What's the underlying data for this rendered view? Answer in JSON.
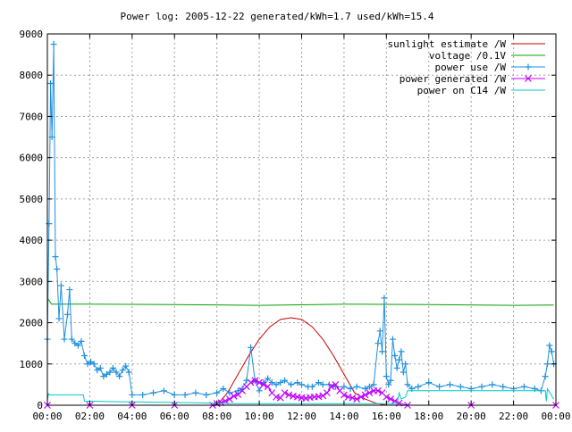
{
  "chart_data": {
    "type": "line",
    "title": "Power log: 2005-12-22 generated/kWh=1.7 used/kWh=15.4",
    "xlabel": "",
    "ylabel": "",
    "xlim": [
      0,
      24
    ],
    "ylim": [
      0,
      9000
    ],
    "grid": true,
    "legend_position": "top-right",
    "x_ticks": [
      "00:00",
      "02:00",
      "04:00",
      "06:00",
      "08:00",
      "10:00",
      "12:00",
      "14:00",
      "16:00",
      "18:00",
      "20:00",
      "22:00",
      "00:00"
    ],
    "y_ticks": [
      "0",
      "1000",
      "2000",
      "3000",
      "4000",
      "5000",
      "6000",
      "7000",
      "8000",
      "9000"
    ],
    "series": [
      {
        "name": "sunlight estimate /W",
        "color": "#cc0000",
        "marker": "none",
        "x": [
          8.0,
          8.5,
          9.0,
          9.5,
          10.0,
          10.5,
          11.0,
          11.5,
          12.0,
          12.5,
          13.0,
          13.5,
          14.0,
          14.5,
          15.0,
          15.5,
          16.0
        ],
        "y": [
          0,
          300,
          750,
          1200,
          1600,
          1900,
          2080,
          2120,
          2080,
          1900,
          1600,
          1200,
          750,
          300,
          150,
          50,
          0
        ]
      },
      {
        "name": "voltage /0.1V",
        "color": "#00a000",
        "marker": "none",
        "x": [
          0.0,
          0.2,
          2.0,
          6.0,
          10.0,
          14.0,
          18.0,
          22.0,
          23.9
        ],
        "y": [
          2600,
          2450,
          2450,
          2440,
          2420,
          2450,
          2440,
          2420,
          2430
        ]
      },
      {
        "name": "power use /W",
        "color": "#1f8fdf",
        "marker": "+",
        "x": [
          0.0,
          0.08,
          0.15,
          0.22,
          0.3,
          0.38,
          0.45,
          0.55,
          0.65,
          0.8,
          0.95,
          1.05,
          1.15,
          1.3,
          1.45,
          1.6,
          1.75,
          1.9,
          2.05,
          2.2,
          2.35,
          2.5,
          2.65,
          2.8,
          2.95,
          3.1,
          3.25,
          3.4,
          3.55,
          3.7,
          3.85,
          4.0,
          4.5,
          5.0,
          5.5,
          6.0,
          6.5,
          7.0,
          7.5,
          8.0,
          8.3,
          8.6,
          9.0,
          9.2,
          9.4,
          9.6,
          9.8,
          10.0,
          10.2,
          10.4,
          10.6,
          10.8,
          11.0,
          11.2,
          11.5,
          11.8,
          12.0,
          12.3,
          12.5,
          12.8,
          13.0,
          13.3,
          13.6,
          14.0,
          14.3,
          14.6,
          15.0,
          15.2,
          15.4,
          15.6,
          15.7,
          15.8,
          15.9,
          16.0,
          16.1,
          16.2,
          16.3,
          16.4,
          16.5,
          16.6,
          16.7,
          16.8,
          16.9,
          17.0,
          17.2,
          17.5,
          18.0,
          18.5,
          19.0,
          19.5,
          20.0,
          20.5,
          21.0,
          21.5,
          22.0,
          22.5,
          23.0,
          23.3,
          23.5,
          23.6,
          23.7,
          23.8,
          23.9
        ],
        "y": [
          1600,
          4400,
          7800,
          6500,
          8750,
          3600,
          3300,
          2100,
          2900,
          1600,
          2200,
          2800,
          1600,
          1500,
          1450,
          1550,
          1200,
          1000,
          1050,
          1000,
          850,
          900,
          700,
          750,
          800,
          900,
          800,
          700,
          850,
          950,
          800,
          250,
          250,
          300,
          350,
          250,
          250,
          300,
          250,
          300,
          400,
          300,
          350,
          400,
          600,
          1400,
          600,
          350,
          550,
          650,
          550,
          500,
          550,
          600,
          500,
          550,
          500,
          450,
          450,
          550,
          500,
          500,
          450,
          450,
          400,
          450,
          400,
          450,
          500,
          1500,
          1800,
          1300,
          2600,
          700,
          500,
          600,
          1600,
          1200,
          900,
          1100,
          1300,
          800,
          1000,
          500,
          400,
          450,
          550,
          450,
          500,
          450,
          400,
          450,
          500,
          450,
          400,
          450,
          400,
          350,
          700,
          1000,
          1450,
          1300,
          1000
        ]
      },
      {
        "name": "power generated /W",
        "color": "#c000ff",
        "marker": "x",
        "x": [
          0.0,
          2.0,
          4.0,
          6.0,
          7.8,
          8.0,
          8.2,
          8.4,
          8.6,
          8.8,
          9.0,
          9.2,
          9.4,
          9.6,
          9.8,
          10.0,
          10.2,
          10.4,
          10.6,
          10.8,
          11.0,
          11.2,
          11.4,
          11.6,
          11.8,
          12.0,
          12.2,
          12.4,
          12.6,
          12.8,
          13.0,
          13.2,
          13.4,
          13.6,
          13.8,
          14.0,
          14.2,
          14.4,
          14.6,
          14.8,
          15.0,
          15.2,
          15.4,
          15.6,
          15.8,
          16.0,
          16.2,
          16.4,
          16.6,
          17.0,
          20.0,
          24.0
        ],
        "y": [
          0,
          0,
          0,
          0,
          0,
          40,
          60,
          100,
          150,
          220,
          260,
          350,
          450,
          550,
          600,
          550,
          500,
          450,
          300,
          200,
          180,
          300,
          250,
          220,
          200,
          180,
          170,
          190,
          200,
          210,
          230,
          300,
          450,
          500,
          350,
          250,
          200,
          180,
          150,
          200,
          250,
          300,
          350,
          350,
          300,
          200,
          150,
          100,
          50,
          0,
          0,
          0
        ]
      },
      {
        "name": "power on C14 /W",
        "color": "#00c8c8",
        "marker": "none",
        "x": [
          0.0,
          0.05,
          0.1,
          1.7,
          1.75,
          4.0,
          7.0,
          9.0,
          12.0,
          15.0,
          16.5,
          16.6,
          16.7,
          16.9,
          17.0,
          23.5,
          23.55,
          23.6,
          23.9
        ],
        "y": [
          100,
          280,
          250,
          250,
          100,
          80,
          60,
          40,
          40,
          40,
          40,
          300,
          150,
          200,
          350,
          350,
          100,
          400,
          150
        ]
      }
    ]
  }
}
